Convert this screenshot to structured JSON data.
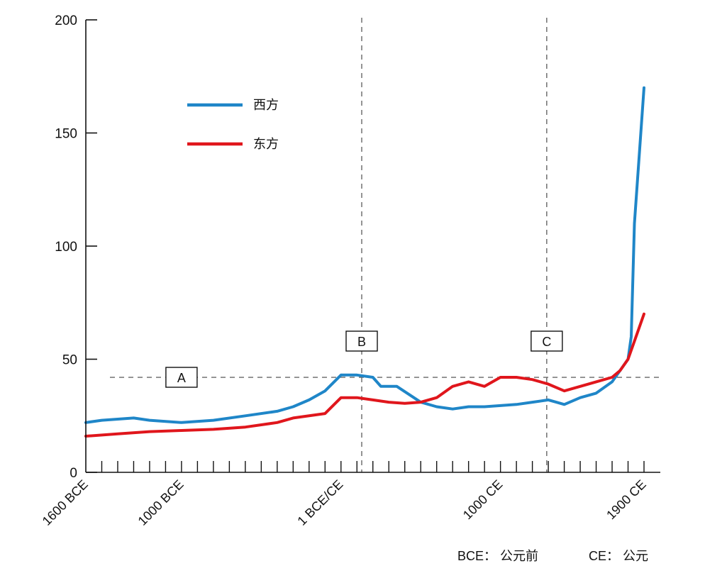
{
  "chart_data": {
    "type": "line",
    "title": "",
    "xlabel": "",
    "ylabel": "",
    "x_unit": "year (negative = BCE)",
    "xlim": [
      -1600,
      2000
    ],
    "ylim": [
      0,
      200
    ],
    "y_ticks": [
      {
        "value": 0,
        "label": "0"
      },
      {
        "value": 50,
        "label": "50"
      },
      {
        "value": 100,
        "label": "100"
      },
      {
        "value": 150,
        "label": "150"
      },
      {
        "value": 200,
        "label": "200"
      }
    ],
    "x_tick_labels": [
      {
        "value": -1600,
        "label": "1600 BCE"
      },
      {
        "value": -1000,
        "label": "1000 BCE"
      },
      {
        "value": 0,
        "label": "1 BCE/CE"
      },
      {
        "value": 1000,
        "label": "1000 CE"
      },
      {
        "value": 1900,
        "label": "1900 CE"
      }
    ],
    "minor_tick_step": 100,
    "legend_position": "top-left",
    "series": [
      {
        "name": "西方",
        "color": "#1f86c8",
        "points": [
          [
            -1600,
            22
          ],
          [
            -1500,
            23
          ],
          [
            -1300,
            24
          ],
          [
            -1200,
            23
          ],
          [
            -1000,
            22
          ],
          [
            -800,
            23
          ],
          [
            -600,
            25
          ],
          [
            -400,
            27
          ],
          [
            -300,
            29
          ],
          [
            -200,
            32
          ],
          [
            -100,
            36
          ],
          [
            0,
            43
          ],
          [
            100,
            43
          ],
          [
            200,
            42
          ],
          [
            250,
            38
          ],
          [
            350,
            38
          ],
          [
            500,
            31
          ],
          [
            600,
            29
          ],
          [
            700,
            28
          ],
          [
            800,
            29
          ],
          [
            900,
            29
          ],
          [
            1000,
            29.5
          ],
          [
            1100,
            30
          ],
          [
            1200,
            31
          ],
          [
            1300,
            32
          ],
          [
            1350,
            31
          ],
          [
            1400,
            30
          ],
          [
            1500,
            33
          ],
          [
            1600,
            35
          ],
          [
            1700,
            40
          ],
          [
            1800,
            50
          ],
          [
            1820,
            60
          ],
          [
            1840,
            110
          ],
          [
            1900,
            170
          ]
        ]
      },
      {
        "name": "东方",
        "color": "#e0161c",
        "points": [
          [
            -1600,
            16
          ],
          [
            -1400,
            17
          ],
          [
            -1200,
            18
          ],
          [
            -1000,
            18.5
          ],
          [
            -800,
            19
          ],
          [
            -600,
            20
          ],
          [
            -400,
            22
          ],
          [
            -300,
            24
          ],
          [
            -100,
            26
          ],
          [
            0,
            33
          ],
          [
            100,
            33
          ],
          [
            200,
            32
          ],
          [
            300,
            31
          ],
          [
            400,
            30.5
          ],
          [
            500,
            31
          ],
          [
            600,
            33
          ],
          [
            700,
            38
          ],
          [
            800,
            40
          ],
          [
            900,
            38
          ],
          [
            1000,
            42
          ],
          [
            1100,
            42
          ],
          [
            1200,
            41
          ],
          [
            1300,
            39
          ],
          [
            1400,
            36
          ],
          [
            1500,
            38
          ],
          [
            1600,
            40
          ],
          [
            1700,
            42
          ],
          [
            1750,
            45
          ],
          [
            1800,
            50
          ],
          [
            1850,
            60
          ],
          [
            1900,
            70
          ]
        ]
      }
    ],
    "reference_lines": [
      {
        "orientation": "horizontal",
        "value": 42,
        "label": "A",
        "label_x": -1000
      },
      {
        "orientation": "vertical",
        "value": 130,
        "label": "B",
        "label_y": 58
      },
      {
        "orientation": "vertical",
        "value": 1290,
        "label": "C",
        "label_y": 58
      }
    ]
  },
  "footnote": {
    "bce": "BCE： 公元前",
    "ce": "CE： 公元"
  }
}
